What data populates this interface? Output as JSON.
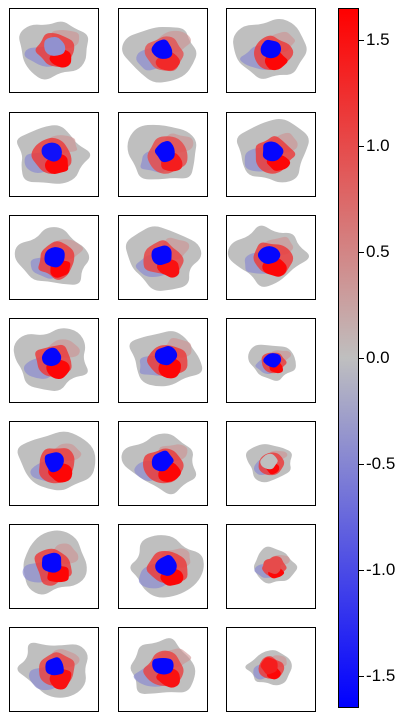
{
  "chart_data": {
    "type": "heatmap",
    "title": "",
    "layout": {
      "rows": 7,
      "columns": 3
    },
    "colorbar": {
      "range": [
        -1.65,
        1.65
      ],
      "colors": {
        "low": "#0000ff",
        "mid": "#bfbfbf",
        "high": "#ff0000"
      },
      "ticks": [
        1.5,
        1.0,
        0.5,
        0.0,
        -0.5,
        -1.0,
        -1.5
      ],
      "tick_labels": [
        "1.5",
        "1.0",
        "0.5",
        "0.0",
        "-0.5",
        "-1.0",
        "-1.5"
      ]
    },
    "panel_count": 21,
    "panels": [
      {
        "row": 1,
        "column": 1,
        "blue_core": -0.4,
        "red_rim": 1.6
      },
      {
        "row": 1,
        "column": 2,
        "blue_core": -1.6,
        "red_rim": 1.3
      },
      {
        "row": 1,
        "column": 3,
        "blue_core": -1.6,
        "red_rim": 1.6
      },
      {
        "row": 2,
        "column": 1,
        "blue_core": -1.5,
        "red_rim": 1.6
      },
      {
        "row": 2,
        "column": 2,
        "blue_core": -1.6,
        "red_rim": 1.4
      },
      {
        "row": 2,
        "column": 3,
        "blue_core": -1.6,
        "red_rim": 1.6
      },
      {
        "row": 3,
        "column": 1,
        "blue_core": -1.6,
        "red_rim": 1.6
      },
      {
        "row": 3,
        "column": 2,
        "blue_core": -1.6,
        "red_rim": 1.5
      },
      {
        "row": 3,
        "column": 3,
        "blue_core": -1.6,
        "red_rim": 1.6
      },
      {
        "row": 4,
        "column": 1,
        "blue_core": -1.6,
        "red_rim": 1.6
      },
      {
        "row": 4,
        "column": 2,
        "blue_core": -1.6,
        "red_rim": 1.6
      },
      {
        "row": 4,
        "column": 3,
        "blue_core": -1.6,
        "red_rim": 1.6
      },
      {
        "row": 5,
        "column": 1,
        "blue_core": -1.6,
        "red_rim": 1.6
      },
      {
        "row": 5,
        "column": 2,
        "blue_core": -1.6,
        "red_rim": 1.6
      },
      {
        "row": 5,
        "column": 3,
        "blue_core": 0.0,
        "red_rim": 1.6
      },
      {
        "row": 6,
        "column": 1,
        "blue_core": -1.6,
        "red_rim": 1.6
      },
      {
        "row": 6,
        "column": 2,
        "blue_core": -1.6,
        "red_rim": 1.6
      },
      {
        "row": 6,
        "column": 3,
        "blue_core": 1.0,
        "red_rim": 1.6
      },
      {
        "row": 7,
        "column": 1,
        "blue_core": -1.6,
        "red_rim": 1.5
      },
      {
        "row": 7,
        "column": 2,
        "blue_core": -1.6,
        "red_rim": 1.5
      },
      {
        "row": 7,
        "column": 3,
        "blue_core": 1.4,
        "red_rim": 1.6
      }
    ]
  }
}
